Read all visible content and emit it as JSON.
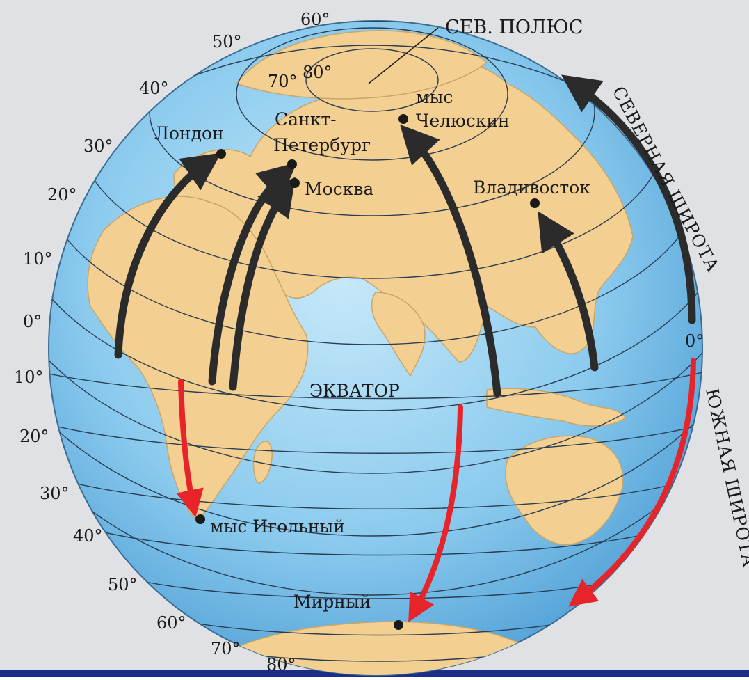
{
  "title_labels": {
    "north_pole": "СЕВ. ПОЛЮС",
    "equator": "ЭКВАТОР",
    "northern_latitude": "СЕВЕРНАЯ ШИРОТА",
    "southern_latitude": "ЮЖНАЯ ШИРОТА"
  },
  "latitude_labels": {
    "north": [
      "60°",
      "50°",
      "40°",
      "30°",
      "20°",
      "10°",
      "0°"
    ],
    "south": [
      "10°",
      "20°",
      "30°",
      "40°",
      "50°",
      "60°",
      "70°",
      "80°"
    ],
    "inner": [
      "70°",
      "80°"
    ],
    "right_zero": "0°"
  },
  "cities": {
    "london": "Лондон",
    "st_petersburg_1": "Санкт-",
    "st_petersburg_2": "Петербург",
    "moscow": "Москва",
    "chelyuskin_1": "мыс",
    "chelyuskin_2": "Челюскин",
    "vladivostok": "Владивосток",
    "cape_agulhas": "мыс Игольный",
    "mirny": "Мирный"
  },
  "colors": {
    "ocean": "#7ec3ec",
    "ocean_light": "#b9e2f7",
    "land": "#f3cf92",
    "north_arrow": "#2b2b2b",
    "south_arrow": "#e8242b",
    "background": "#dfe1e4",
    "bottom_bar": "#1b2f8a"
  }
}
